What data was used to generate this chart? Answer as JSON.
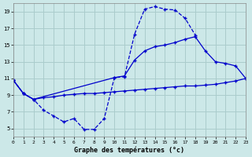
{
  "title": "Graphe des températures (°c)",
  "bg_color": "#cce8e8",
  "grid_color": "#aacccc",
  "line_color": "#0000cc",
  "hours": [
    0,
    1,
    2,
    3,
    4,
    5,
    6,
    7,
    8,
    9,
    10,
    11,
    12,
    13,
    14,
    15,
    16,
    17,
    18,
    19,
    20,
    21,
    22,
    23
  ],
  "temp_actual": [
    10.8,
    9.2,
    8.5,
    7.2,
    6.5,
    5.8,
    6.2,
    4.9,
    4.9,
    6.2,
    11.1,
    11.2,
    16.3,
    19.3,
    19.6,
    19.3,
    19.2,
    18.2,
    16.2,
    null,
    null,
    null,
    null,
    null
  ],
  "temp_max_x": [
    0,
    1,
    2,
    10,
    11,
    12,
    13,
    14,
    15,
    16,
    17,
    18,
    19,
    20,
    21,
    22,
    23
  ],
  "temp_max_y": [
    10.8,
    9.2,
    8.5,
    11.1,
    11.3,
    13.2,
    14.3,
    14.8,
    15.0,
    15.3,
    15.7,
    16.0,
    14.3,
    13.0,
    12.8,
    12.5,
    11.0
  ],
  "temp_min_x": [
    0,
    1,
    2,
    3,
    4,
    5,
    6,
    7,
    8,
    9,
    10,
    11,
    12,
    13,
    14,
    15,
    16,
    17,
    18,
    19,
    20,
    21,
    22,
    23
  ],
  "temp_min_y": [
    10.8,
    9.2,
    8.5,
    8.7,
    8.8,
    9.0,
    9.1,
    9.2,
    9.2,
    9.3,
    9.4,
    9.5,
    9.6,
    9.7,
    9.8,
    9.9,
    10.0,
    10.1,
    10.1,
    10.2,
    10.3,
    10.5,
    10.7,
    11.0
  ],
  "ylim": [
    4,
    20
  ],
  "yticks": [
    5,
    7,
    9,
    11,
    13,
    15,
    17,
    19
  ],
  "xlim": [
    0,
    23
  ],
  "xticks": [
    0,
    1,
    2,
    3,
    4,
    5,
    6,
    7,
    8,
    9,
    10,
    11,
    12,
    13,
    14,
    15,
    16,
    17,
    18,
    19,
    20,
    21,
    22,
    23
  ]
}
